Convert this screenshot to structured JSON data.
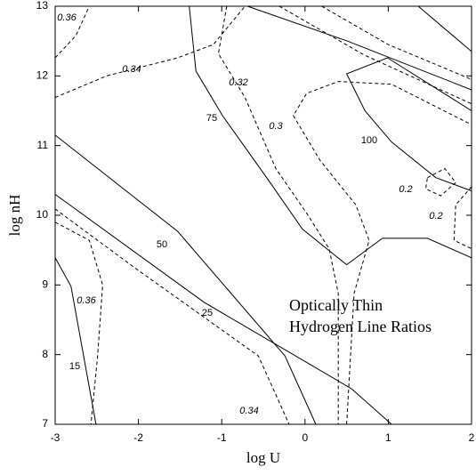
{
  "chart_data": {
    "type": "contour",
    "xlabel": "log U",
    "ylabel": "log nH",
    "annotation": [
      "Optically Thin",
      "Hydrogen Line Ratios"
    ],
    "xlim": [
      -3,
      2
    ],
    "ylim": [
      7,
      13
    ],
    "xticks": [
      -3,
      -2,
      -1,
      0,
      1,
      2
    ],
    "yticks": [
      7,
      8,
      9,
      10,
      11,
      12,
      13
    ],
    "color": "#000000",
    "contours": [
      {
        "level": 15,
        "style": "solid",
        "x": [
          -3,
          -2.81,
          -2.51
        ],
        "y": [
          9.39,
          8.98,
          7.0
        ]
      },
      {
        "level": 25,
        "style": "solid",
        "x": [
          -3,
          -1.21,
          0.56,
          1.04
        ],
        "y": [
          10.3,
          8.75,
          7.51,
          7.0
        ]
      },
      {
        "level": 50,
        "style": "solid",
        "x": [
          -3,
          -1.53,
          -0.24,
          0.13
        ],
        "y": [
          11.15,
          9.77,
          7.98,
          7.0
        ]
      },
      {
        "level": 75,
        "style": "solid",
        "x": [
          -1.39,
          -1.31,
          -0.99,
          -0.46,
          -0.03,
          0.5,
          0.93,
          1.47,
          2.0
        ],
        "y": [
          13,
          12.07,
          11.43,
          10.54,
          9.8,
          9.29,
          9.67,
          9.67,
          9.39
        ]
      },
      {
        "level": 100,
        "style": "solid",
        "x": [
          2.0,
          0.99,
          0.5,
          0.72,
          1.04,
          1.57,
          2.0
        ],
        "y": [
          11.5,
          12.26,
          12.03,
          11.5,
          11.05,
          10.54,
          10.35
        ]
      },
      {
        "level": null,
        "style": "solid",
        "x": [
          -0.69,
          0.51,
          2.0
        ],
        "y": [
          13,
          12.5,
          11.8
        ]
      },
      {
        "level": null,
        "style": "solid",
        "x": [
          1.36,
          2.0
        ],
        "y": [
          13,
          12.35
        ]
      },
      {
        "level": 0.36,
        "style": "dashed",
        "x": [
          -3,
          -2.75,
          -2.59
        ],
        "y": [
          12.26,
          12.58,
          13
        ]
      },
      {
        "level": 0.34,
        "style": "dashed",
        "x": [
          -3,
          -2.38,
          -1.53,
          -1.1,
          -0.72
        ],
        "y": [
          11.69,
          12.0,
          12.26,
          12.45,
          13
        ]
      },
      {
        "level": 0.32,
        "style": "dashed",
        "x": [
          -0.94,
          -1.04,
          -0.72,
          -0.35,
          0.02,
          0.29,
          0.4,
          0.4
        ],
        "y": [
          13,
          12.32,
          11.69,
          10.67,
          10.03,
          9.52,
          8.88,
          7.0
        ]
      },
      {
        "level": 0.3,
        "style": "dashed",
        "x": [
          0.5,
          0.59,
          0.77,
          0.61,
          0.18,
          -0.14,
          0.02,
          0.4,
          1.04,
          2.0
        ],
        "y": [
          7,
          8.88,
          9.64,
          10.15,
          10.79,
          11.43,
          11.75,
          11.92,
          11.88,
          11.3
        ]
      },
      {
        "level": null,
        "style": "dashed",
        "x": [
          -0.31,
          0.71,
          2.0
        ],
        "y": [
          13,
          12.3,
          11.6
        ]
      },
      {
        "level": null,
        "style": "dashed",
        "x": [
          0.2,
          1.0,
          2.0
        ],
        "y": [
          13,
          12.45,
          11.95
        ]
      },
      {
        "level": 0.2,
        "style": "dashed",
        "x": [
          1.47,
          1.68,
          1.81,
          1.63,
          1.45,
          1.47
        ],
        "y": [
          10.54,
          10.67,
          10.47,
          10.28,
          10.38,
          10.54
        ]
      },
      {
        "level": 0.2,
        "style": "dashed",
        "x": [
          2,
          1.81,
          1.79,
          2
        ],
        "y": [
          10.41,
          10.15,
          9.64,
          9.52
        ]
      },
      {
        "level": 0.36,
        "style": "dashed",
        "x": [
          -3,
          -2.59,
          -2.43,
          -2.49,
          -2.57
        ],
        "y": [
          9.9,
          9.64,
          9.0,
          7.98,
          7.0
        ]
      },
      {
        "level": 0.34,
        "style": "dashed",
        "x": [
          -3,
          -2.06,
          -0.56,
          -0.19
        ],
        "y": [
          10.09,
          9.26,
          7.98,
          7.0
        ]
      }
    ]
  }
}
